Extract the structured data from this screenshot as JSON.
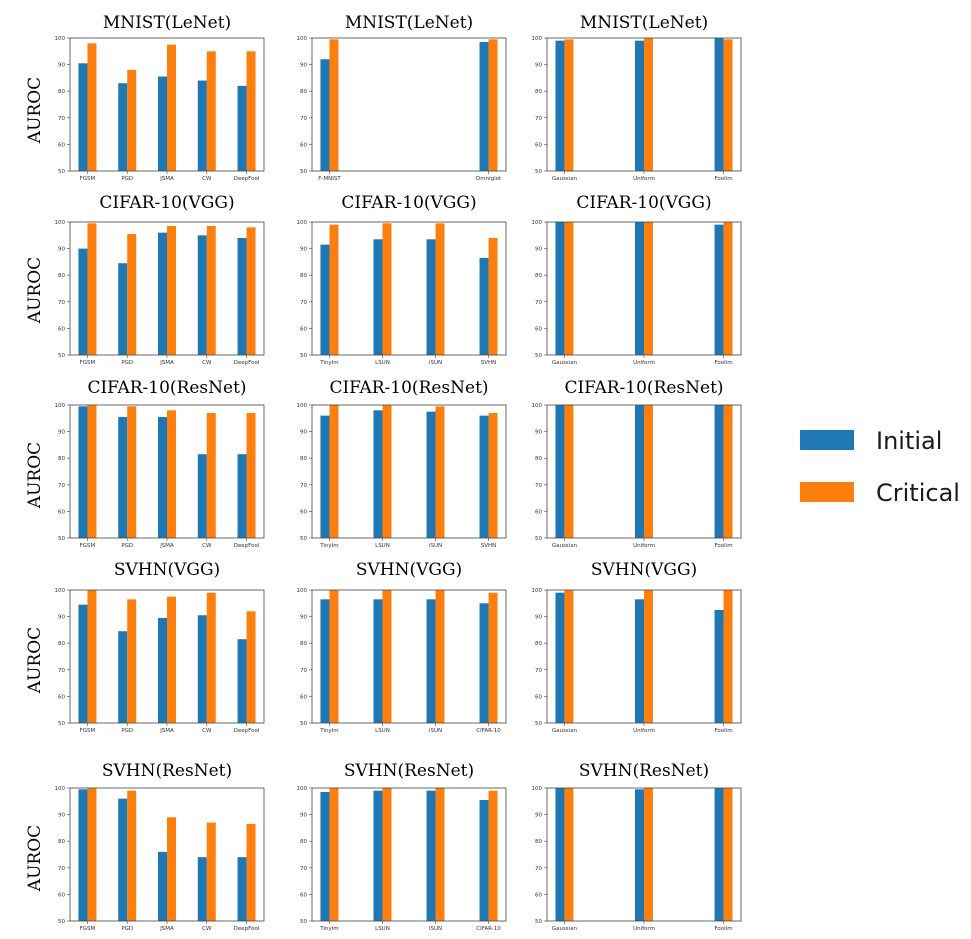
{
  "legend": {
    "entries": [
      {
        "name": "Initial",
        "color": "#1f77b4"
      },
      {
        "name": "Critical",
        "color": "#ff7f0e"
      }
    ],
    "placement": "right"
  },
  "ylabel": "AUROC",
  "chart_data": [
    {
      "type": "bar",
      "title": "MNIST(LeNet)",
      "ylabel": "AUROC",
      "ylim": [
        50,
        100
      ],
      "yticks": [
        50,
        60,
        70,
        80,
        90,
        100
      ],
      "categories": [
        "FGSM",
        "PGD",
        "JSMA",
        "CW",
        "DeepFool"
      ],
      "series": [
        {
          "name": "Initial",
          "values": [
            90.5,
            83,
            85.5,
            84,
            82
          ]
        },
        {
          "name": "Critical",
          "values": [
            98,
            88,
            97.5,
            95,
            95
          ]
        }
      ]
    },
    {
      "type": "bar",
      "title": "MNIST(LeNet)",
      "ylim": [
        50,
        100
      ],
      "yticks": [
        50,
        60,
        70,
        80,
        90,
        100
      ],
      "categories": [
        "F-MNIST",
        "Omniglot"
      ],
      "series": [
        {
          "name": "Initial",
          "values": [
            92,
            98.5
          ]
        },
        {
          "name": "Critical",
          "values": [
            99.5,
            99.5
          ]
        }
      ]
    },
    {
      "type": "bar",
      "title": "MNIST(LeNet)",
      "ylim": [
        50,
        100
      ],
      "yticks": [
        50,
        60,
        70,
        80,
        90,
        100
      ],
      "categories": [
        "Gaussian",
        "Uniform",
        "Foolim"
      ],
      "series": [
        {
          "name": "Initial",
          "values": [
            99,
            99,
            100
          ]
        },
        {
          "name": "Critical",
          "values": [
            99.5,
            100,
            99.5
          ]
        }
      ]
    },
    {
      "type": "bar",
      "title": "CIFAR-10(VGG)",
      "ylabel": "AUROC",
      "ylim": [
        50,
        100
      ],
      "yticks": [
        50,
        60,
        70,
        80,
        90,
        100
      ],
      "categories": [
        "FGSM",
        "PGD",
        "JSMA",
        "CW",
        "DeepFool"
      ],
      "series": [
        {
          "name": "Initial",
          "values": [
            90,
            84.5,
            96,
            95,
            94
          ]
        },
        {
          "name": "Critical",
          "values": [
            99.5,
            95.5,
            98.5,
            98.5,
            98
          ]
        }
      ]
    },
    {
      "type": "bar",
      "title": "CIFAR-10(VGG)",
      "ylim": [
        50,
        100
      ],
      "yticks": [
        50,
        60,
        70,
        80,
        90,
        100
      ],
      "categories": [
        "TinyIm",
        "LSUN",
        "iSUN",
        "SVHN"
      ],
      "series": [
        {
          "name": "Initial",
          "values": [
            91.5,
            93.5,
            93.5,
            86.5
          ]
        },
        {
          "name": "Critical",
          "values": [
            99,
            99.5,
            99.5,
            94
          ]
        }
      ]
    },
    {
      "type": "bar",
      "title": "CIFAR-10(VGG)",
      "ylim": [
        50,
        100
      ],
      "yticks": [
        50,
        60,
        70,
        80,
        90,
        100
      ],
      "categories": [
        "Gaussian",
        "Uniform",
        "Foolim"
      ],
      "series": [
        {
          "name": "Initial",
          "values": [
            100,
            100,
            99
          ]
        },
        {
          "name": "Critical",
          "values": [
            100,
            100,
            100
          ]
        }
      ]
    },
    {
      "type": "bar",
      "title": "CIFAR-10(ResNet)",
      "ylabel": "AUROC",
      "ylim": [
        50,
        100
      ],
      "yticks": [
        50,
        60,
        70,
        80,
        90,
        100
      ],
      "categories": [
        "FGSM",
        "PGD",
        "JSMA",
        "CW",
        "DeepFool"
      ],
      "series": [
        {
          "name": "Initial",
          "values": [
            99.5,
            95.5,
            95.5,
            81.5,
            81.5
          ]
        },
        {
          "name": "Critical",
          "values": [
            100,
            99.5,
            98,
            97,
            97
          ]
        }
      ]
    },
    {
      "type": "bar",
      "title": "CIFAR-10(ResNet)",
      "ylim": [
        50,
        100
      ],
      "yticks": [
        50,
        60,
        70,
        80,
        90,
        100
      ],
      "categories": [
        "TinyIm",
        "LSUN",
        "iSUN",
        "SVHN"
      ],
      "series": [
        {
          "name": "Initial",
          "values": [
            96,
            98,
            97.5,
            96
          ]
        },
        {
          "name": "Critical",
          "values": [
            100,
            100,
            99.5,
            97
          ]
        }
      ]
    },
    {
      "type": "bar",
      "title": "CIFAR-10(ResNet)",
      "ylim": [
        50,
        100
      ],
      "yticks": [
        50,
        60,
        70,
        80,
        90,
        100
      ],
      "categories": [
        "Gaussian",
        "Uniform",
        "Foolim"
      ],
      "series": [
        {
          "name": "Initial",
          "values": [
            100,
            100,
            100
          ]
        },
        {
          "name": "Critical",
          "values": [
            100,
            100,
            100
          ]
        }
      ]
    },
    {
      "type": "bar",
      "title": "SVHN(VGG)",
      "ylabel": "AUROC",
      "ylim": [
        50,
        100
      ],
      "yticks": [
        50,
        60,
        70,
        80,
        90,
        100
      ],
      "categories": [
        "FGSM",
        "PGD",
        "JSMA",
        "CW",
        "DeepFool"
      ],
      "series": [
        {
          "name": "Initial",
          "values": [
            94.5,
            84.5,
            89.5,
            90.5,
            81.5
          ]
        },
        {
          "name": "Critical",
          "values": [
            100,
            96.5,
            97.5,
            99,
            92
          ]
        }
      ]
    },
    {
      "type": "bar",
      "title": "SVHN(VGG)",
      "ylim": [
        50,
        100
      ],
      "yticks": [
        50,
        60,
        70,
        80,
        90,
        100
      ],
      "categories": [
        "TinyIm",
        "LSUN",
        "iSUN",
        "CIFAR-10"
      ],
      "series": [
        {
          "name": "Initial",
          "values": [
            96.5,
            96.5,
            96.5,
            95
          ]
        },
        {
          "name": "Critical",
          "values": [
            100,
            100,
            100,
            99
          ]
        }
      ]
    },
    {
      "type": "bar",
      "title": "SVHN(VGG)",
      "ylim": [
        50,
        100
      ],
      "yticks": [
        50,
        60,
        70,
        80,
        90,
        100
      ],
      "categories": [
        "Gaussian",
        "Uniform",
        "Foolim"
      ],
      "series": [
        {
          "name": "Initial",
          "values": [
            99,
            96.5,
            92.5
          ]
        },
        {
          "name": "Critical",
          "values": [
            100,
            100,
            100
          ]
        }
      ]
    },
    {
      "type": "bar",
      "title": "SVHN(ResNet)",
      "ylabel": "AUROC",
      "ylim": [
        50,
        100
      ],
      "yticks": [
        50,
        60,
        70,
        80,
        90,
        100
      ],
      "categories": [
        "FGSM",
        "PGD",
        "JSMA",
        "CW",
        "DeepFool"
      ],
      "series": [
        {
          "name": "Initial",
          "values": [
            99.5,
            96,
            76,
            74,
            74
          ]
        },
        {
          "name": "Critical",
          "values": [
            100,
            99,
            89,
            87,
            86.5
          ]
        }
      ]
    },
    {
      "type": "bar",
      "title": "SVHN(ResNet)",
      "ylim": [
        50,
        100
      ],
      "yticks": [
        50,
        60,
        70,
        80,
        90,
        100
      ],
      "categories": [
        "TinyIm",
        "LSUN",
        "iSUN",
        "CIFAR-10"
      ],
      "series": [
        {
          "name": "Initial",
          "values": [
            98.5,
            99,
            99,
            95.5
          ]
        },
        {
          "name": "Critical",
          "values": [
            100,
            100,
            100,
            99
          ]
        }
      ]
    },
    {
      "type": "bar",
      "title": "SVHN(ResNet)",
      "ylim": [
        50,
        100
      ],
      "yticks": [
        50,
        60,
        70,
        80,
        90,
        100
      ],
      "categories": [
        "Gaussian",
        "Uniform",
        "Foolim"
      ],
      "series": [
        {
          "name": "Initial",
          "values": [
            100,
            99.5,
            100
          ]
        },
        {
          "name": "Critical",
          "values": [
            100,
            100,
            100
          ]
        }
      ]
    }
  ]
}
